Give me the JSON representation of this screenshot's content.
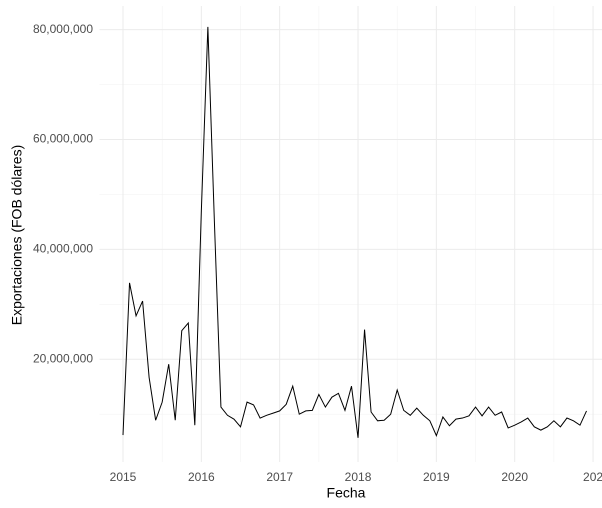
{
  "chart_data": {
    "type": "line",
    "x_label": "Fecha",
    "y_label": "Exportaciones (FOB dólares)",
    "color": "#000000",
    "grid": true,
    "x": [
      2015,
      2015.0833,
      2015.1667,
      2015.25,
      2015.3333,
      2015.4167,
      2015.5,
      2015.5833,
      2015.6667,
      2015.75,
      2015.8333,
      2015.9167,
      2016,
      2016.0833,
      2016.1667,
      2016.25,
      2016.3333,
      2016.4167,
      2016.5,
      2016.5833,
      2016.6667,
      2016.75,
      2016.8333,
      2016.9167,
      2017,
      2017.0833,
      2017.1667,
      2017.25,
      2017.3333,
      2017.4167,
      2017.5,
      2017.5833,
      2017.6667,
      2017.75,
      2017.8333,
      2017.9167,
      2018,
      2018.0833,
      2018.1667,
      2018.25,
      2018.3333,
      2018.4167,
      2018.5,
      2018.5833,
      2018.6667,
      2018.75,
      2018.8333,
      2018.9167,
      2019,
      2019.0833,
      2019.1667,
      2019.25,
      2019.3333,
      2019.4167,
      2019.5,
      2019.5833,
      2019.6667,
      2019.75,
      2019.8333,
      2019.9167,
      2020,
      2020.0833,
      2020.1667,
      2020.25,
      2020.3333,
      2020.4167,
      2020.5,
      2020.5833,
      2020.6667,
      2020.75,
      2020.8333,
      2020.9167
    ],
    "values": [
      6200000,
      33900000,
      27900000,
      30600000,
      16700000,
      8900000,
      12200000,
      19100000,
      8900000,
      25200000,
      26600000,
      8000000,
      47000000,
      80500000,
      45000000,
      11300000,
      9800000,
      9100000,
      7700000,
      12200000,
      11700000,
      9300000,
      9800000,
      10200000,
      10600000,
      11800000,
      15100000,
      10000000,
      10600000,
      10700000,
      13600000,
      11300000,
      13100000,
      13800000,
      10700000,
      15100000,
      5700000,
      25400000,
      10400000,
      8800000,
      8900000,
      10000000,
      14400000,
      10700000,
      9800000,
      11100000,
      9800000,
      8800000,
      6100000,
      9500000,
      7900000,
      9100000,
      9300000,
      9700000,
      11300000,
      9700000,
      11300000,
      9800000,
      10400000,
      7500000,
      8000000,
      8600000,
      9300000,
      7700000,
      7100000,
      7700000,
      8800000,
      7700000,
      9300000,
      8800000,
      8000000,
      10600000
    ],
    "xlim": [
      2014.7,
      2021.21
    ],
    "ylim": [
      1300000,
      84300000
    ],
    "xticks": [
      2015,
      2016,
      2017,
      2018,
      2019,
      2020,
      {
        "value": 2021,
        "label": "202"
      }
    ],
    "yticks": [
      {
        "value": 20000000,
        "label": "20,000,000"
      },
      {
        "value": 40000000,
        "label": "40,000,000"
      },
      {
        "value": 60000000,
        "label": "60,000,000"
      },
      {
        "value": 80000000,
        "label": "80,000,000"
      }
    ]
  }
}
